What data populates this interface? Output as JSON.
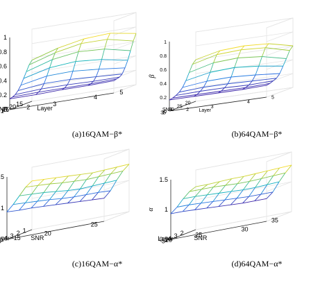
{
  "chart_data": [
    {
      "type": "surface",
      "caption": "(a)16QAM−β*",
      "zlabel": "β",
      "xlabel": "SNR",
      "ylabel": "Layer",
      "x_ticks": [
        "15",
        "20",
        "25"
      ],
      "y_ticks": [
        "1",
        "2",
        "3",
        "4",
        "5"
      ],
      "z_ticks": [
        "0",
        "0.2",
        "0.4",
        "0.6",
        "0.8",
        "1"
      ],
      "zlim": [
        0,
        1
      ],
      "snr": [
        12,
        14,
        16,
        18,
        20,
        22,
        24,
        26,
        28
      ],
      "layer": [
        1,
        2,
        3,
        4,
        5
      ],
      "z": [
        [
          0.57,
          0.68,
          0.75,
          0.77,
          0.71
        ],
        [
          0.52,
          0.63,
          0.7,
          0.7,
          0.62
        ],
        [
          0.44,
          0.55,
          0.6,
          0.58,
          0.5
        ],
        [
          0.36,
          0.45,
          0.48,
          0.45,
          0.38
        ],
        [
          0.28,
          0.35,
          0.36,
          0.33,
          0.29
        ],
        [
          0.22,
          0.26,
          0.26,
          0.24,
          0.22
        ],
        [
          0.18,
          0.2,
          0.2,
          0.19,
          0.19
        ],
        [
          0.16,
          0.17,
          0.17,
          0.17,
          0.18
        ],
        [
          0.15,
          0.15,
          0.16,
          0.16,
          0.17
        ]
      ]
    },
    {
      "type": "surface",
      "caption": "(b)64QAM−β*",
      "zlabel": "β",
      "xlabel": "SNR",
      "ylabel": "Layer",
      "x_ticks": [
        "20",
        "25",
        "30",
        "35"
      ],
      "y_ticks": [
        "1",
        "2",
        "3",
        "4",
        "5"
      ],
      "z_ticks": [
        "0",
        "0.2",
        "0.4",
        "0.6",
        "0.8",
        "1"
      ],
      "zlim": [
        0,
        1
      ],
      "snr": [
        19,
        21,
        23,
        25,
        27,
        29,
        31,
        33,
        35
      ],
      "layer": [
        1,
        2,
        3,
        4,
        5
      ],
      "z": [
        [
          0.6,
          0.68,
          0.7,
          0.68,
          0.6
        ],
        [
          0.55,
          0.64,
          0.66,
          0.64,
          0.55
        ],
        [
          0.45,
          0.54,
          0.56,
          0.53,
          0.45
        ],
        [
          0.35,
          0.42,
          0.44,
          0.41,
          0.36
        ],
        [
          0.27,
          0.31,
          0.32,
          0.3,
          0.27
        ],
        [
          0.22,
          0.24,
          0.24,
          0.23,
          0.22
        ],
        [
          0.19,
          0.2,
          0.2,
          0.19,
          0.2
        ],
        [
          0.17,
          0.17,
          0.17,
          0.17,
          0.18
        ],
        [
          0.16,
          0.16,
          0.16,
          0.16,
          0.17
        ]
      ]
    },
    {
      "type": "surface",
      "caption": "(c)16QAM−α*",
      "zlabel": "α",
      "xlabel": "SNR",
      "ylabel": "Layer",
      "x_ticks": [
        "15",
        "20",
        "25"
      ],
      "y_ticks": [
        "1",
        "2",
        "3",
        "4",
        "5"
      ],
      "z_ticks": [
        "0.5",
        "1",
        "1.5"
      ],
      "zlim": [
        0.5,
        1.5
      ],
      "snr": [
        12,
        14,
        16,
        18,
        20,
        22,
        24,
        26,
        28
      ],
      "layer": [
        1,
        2,
        3,
        4,
        5
      ],
      "z": [
        [
          1.28,
          1.22,
          1.12,
          1.02,
          0.94
        ],
        [
          1.27,
          1.21,
          1.11,
          1.01,
          0.93
        ],
        [
          1.26,
          1.2,
          1.1,
          1.0,
          0.93
        ],
        [
          1.25,
          1.18,
          1.08,
          0.99,
          0.92
        ],
        [
          1.24,
          1.17,
          1.06,
          0.97,
          0.91
        ],
        [
          1.23,
          1.16,
          1.05,
          0.96,
          0.9
        ],
        [
          1.24,
          1.17,
          1.06,
          0.96,
          0.89
        ],
        [
          1.25,
          1.18,
          1.07,
          0.96,
          0.88
        ],
        [
          1.26,
          1.19,
          1.08,
          0.95,
          0.87
        ]
      ]
    },
    {
      "type": "surface",
      "caption": "(d)64QAM−α*",
      "zlabel": "α",
      "xlabel": "SNR",
      "ylabel": "Layer",
      "x_ticks": [
        "20",
        "25",
        "30",
        "35"
      ],
      "y_ticks": [
        "2",
        "3",
        "4",
        "5"
      ],
      "z_ticks": [
        "0.5",
        "1",
        "1.5"
      ],
      "zlim": [
        0.5,
        1.5
      ],
      "snr": [
        19,
        21,
        23,
        25,
        27,
        29,
        31,
        33,
        35
      ],
      "layer": [
        1,
        2,
        3,
        4,
        5
      ],
      "z": [
        [
          1.22,
          1.18,
          1.1,
          1.0,
          0.93
        ],
        [
          1.22,
          1.18,
          1.1,
          1.0,
          0.93
        ],
        [
          1.23,
          1.18,
          1.09,
          0.99,
          0.92
        ],
        [
          1.24,
          1.17,
          1.08,
          0.98,
          0.91
        ],
        [
          1.24,
          1.16,
          1.07,
          0.97,
          0.9
        ],
        [
          1.25,
          1.16,
          1.06,
          0.96,
          0.89
        ],
        [
          1.26,
          1.17,
          1.06,
          0.95,
          0.88
        ],
        [
          1.27,
          1.18,
          1.07,
          0.95,
          0.88
        ],
        [
          1.28,
          1.19,
          1.08,
          0.95,
          0.88
        ]
      ]
    }
  ]
}
